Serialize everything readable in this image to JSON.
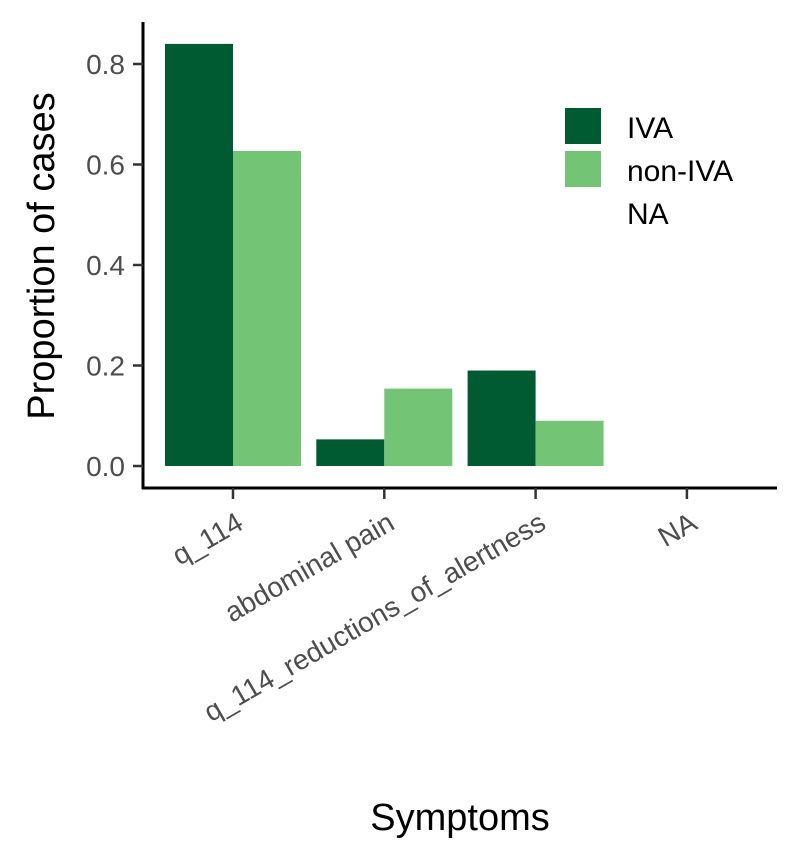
{
  "chart_data": {
    "type": "bar",
    "title": "",
    "xlabel": "Symptoms",
    "ylabel": "Proportion of cases",
    "categories": [
      "q_114",
      "abdominal pain",
      "q_114_reductions_of_alertness",
      "NA"
    ],
    "series": [
      {
        "name": "IVA",
        "color": "#005a32",
        "values": [
          0.84,
          0.053,
          0.19,
          null
        ]
      },
      {
        "name": "non-IVA",
        "color": "#74c476",
        "values": [
          0.627,
          0.154,
          0.09,
          null
        ]
      },
      {
        "name": "NA",
        "color": null,
        "values": [
          null,
          null,
          null,
          null
        ]
      }
    ],
    "yticks": [
      "0.0",
      "0.2",
      "0.4",
      "0.6",
      "0.8"
    ],
    "ylim": [
      0,
      0.88
    ],
    "grid": false,
    "legend_position": "top-right"
  }
}
